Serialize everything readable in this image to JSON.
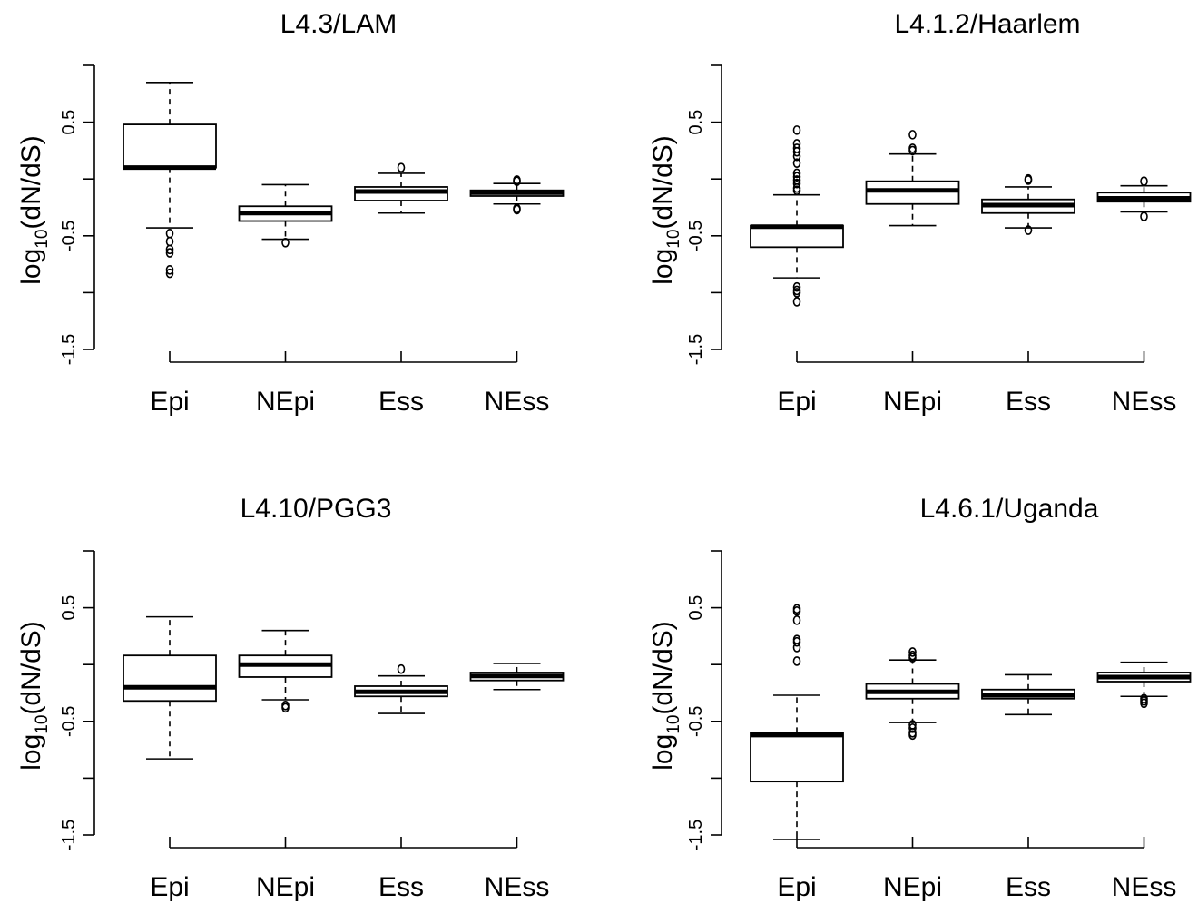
{
  "chart_data": [
    {
      "type": "box",
      "title": "L4.3/LAM",
      "xlabel": "",
      "ylabel": "log10(dN/dS)",
      "ylabel_parts": {
        "pre": "log",
        "sub": "10",
        "post": "(dN/dS)"
      },
      "ylim": [
        -1.5,
        1.0
      ],
      "yticks": [
        0.5,
        -0.5,
        -1.5
      ],
      "ytick_labels": [
        "0.5",
        "-0.5",
        "-1.5"
      ],
      "categories": [
        "Epi",
        "NEpi",
        "Ess",
        "NEss"
      ],
      "boxes": [
        {
          "name": "Epi",
          "q1": 0.1,
          "median": 0.1,
          "q3": 0.48,
          "whisker_low": -0.43,
          "whisker_high": 0.85,
          "outliers": [
            -0.48,
            -0.55,
            -0.62,
            -0.65,
            -0.8,
            -0.83
          ]
        },
        {
          "name": "NEpi",
          "q1": -0.37,
          "median": -0.3,
          "q3": -0.24,
          "whisker_low": -0.53,
          "whisker_high": -0.05,
          "outliers": [
            -0.56
          ]
        },
        {
          "name": "Ess",
          "q1": -0.19,
          "median": -0.11,
          "q3": -0.07,
          "whisker_low": -0.3,
          "whisker_high": 0.05,
          "outliers": [
            0.1
          ]
        },
        {
          "name": "NEss",
          "q1": -0.15,
          "median": -0.12,
          "q3": -0.1,
          "whisker_low": -0.22,
          "whisker_high": -0.04,
          "outliers": [
            -0.02,
            -0.01,
            -0.26,
            -0.27
          ]
        }
      ]
    },
    {
      "type": "box",
      "title": "L4.1.2/Haarlem",
      "xlabel": "",
      "ylabel": "log10(dN/dS)",
      "ylabel_parts": {
        "pre": "log",
        "sub": "10",
        "post": "(dN/dS)"
      },
      "ylim": [
        -1.5,
        1.0
      ],
      "yticks": [
        0.5,
        -0.5,
        -1.5
      ],
      "ytick_labels": [
        "0.5",
        "-0.5",
        "-1.5"
      ],
      "categories": [
        "Epi",
        "NEpi",
        "Ess",
        "NEss"
      ],
      "boxes": [
        {
          "name": "Epi",
          "q1": -0.6,
          "median": -0.42,
          "q3": -0.41,
          "whisker_low": -0.87,
          "whisker_high": -0.14,
          "outliers": [
            -0.95,
            -0.98,
            -1.0,
            -1.08,
            0.43,
            0.31,
            0.27,
            0.24,
            0.2,
            0.14,
            0.05,
            0.02,
            -0.01,
            -0.04,
            -0.08,
            -0.1
          ]
        },
        {
          "name": "NEpi",
          "q1": -0.22,
          "median": -0.1,
          "q3": -0.02,
          "whisker_low": -0.41,
          "whisker_high": 0.22,
          "outliers": [
            0.39,
            0.27,
            0.25
          ]
        },
        {
          "name": "Ess",
          "q1": -0.3,
          "median": -0.23,
          "q3": -0.18,
          "whisker_low": -0.43,
          "whisker_high": -0.07,
          "outliers": [
            0.0,
            -0.01,
            -0.45
          ]
        },
        {
          "name": "NEss",
          "q1": -0.2,
          "median": -0.17,
          "q3": -0.12,
          "whisker_low": -0.29,
          "whisker_high": -0.06,
          "outliers": [
            -0.02,
            -0.33
          ]
        }
      ]
    },
    {
      "type": "box",
      "title": "L4.10/PGG3",
      "xlabel": "",
      "ylabel": "log10(dN/dS)",
      "ylabel_parts": {
        "pre": "log",
        "sub": "10",
        "post": "(dN/dS)"
      },
      "ylim": [
        -1.5,
        1.0
      ],
      "yticks": [
        0.5,
        -0.5,
        -1.5
      ],
      "ytick_labels": [
        "0.5",
        "-0.5",
        "-1.5"
      ],
      "categories": [
        "Epi",
        "NEpi",
        "Ess",
        "NEss"
      ],
      "boxes": [
        {
          "name": "Epi",
          "q1": -0.32,
          "median": -0.2,
          "q3": 0.08,
          "whisker_low": -0.83,
          "whisker_high": 0.42,
          "outliers": []
        },
        {
          "name": "NEpi",
          "q1": -0.11,
          "median": 0.0,
          "q3": 0.08,
          "whisker_low": -0.31,
          "whisker_high": 0.3,
          "outliers": [
            -0.36,
            -0.38
          ]
        },
        {
          "name": "Ess",
          "q1": -0.28,
          "median": -0.24,
          "q3": -0.19,
          "whisker_low": -0.43,
          "whisker_high": -0.1,
          "outliers": [
            -0.04
          ]
        },
        {
          "name": "NEss",
          "q1": -0.14,
          "median": -0.1,
          "q3": -0.07,
          "whisker_low": -0.22,
          "whisker_high": 0.01,
          "outliers": []
        }
      ]
    },
    {
      "type": "box",
      "title": "L4.6.1/Uganda",
      "xlabel": "",
      "ylabel": "log10(dN/dS)",
      "ylabel_parts": {
        "pre": "log",
        "sub": "10",
        "post": "(dN/dS)"
      },
      "ylim": [
        -1.5,
        1.0
      ],
      "yticks": [
        0.5,
        -0.5,
        -1.5
      ],
      "ytick_labels": [
        "0.5",
        "-0.5",
        "-1.5"
      ],
      "categories": [
        "Epi",
        "NEpi",
        "Ess",
        "NEss"
      ],
      "boxes": [
        {
          "name": "Epi",
          "q1": -1.03,
          "median": -0.62,
          "q3": -0.6,
          "whisker_low": -1.54,
          "whisker_high": -0.27,
          "outliers": [
            0.49,
            0.47,
            0.39,
            0.22,
            0.2,
            0.15,
            0.03
          ]
        },
        {
          "name": "NEpi",
          "q1": -0.3,
          "median": -0.24,
          "q3": -0.17,
          "whisker_low": -0.51,
          "whisker_high": 0.04,
          "outliers": [
            0.11,
            0.08,
            0.06,
            -0.53,
            -0.56,
            -0.6,
            -0.62
          ]
        },
        {
          "name": "Ess",
          "q1": -0.3,
          "median": -0.27,
          "q3": -0.22,
          "whisker_low": -0.44,
          "whisker_high": -0.09,
          "outliers": []
        },
        {
          "name": "NEss",
          "q1": -0.15,
          "median": -0.11,
          "q3": -0.07,
          "whisker_low": -0.28,
          "whisker_high": 0.02,
          "outliers": [
            -0.3,
            -0.32,
            -0.34
          ]
        }
      ]
    }
  ]
}
